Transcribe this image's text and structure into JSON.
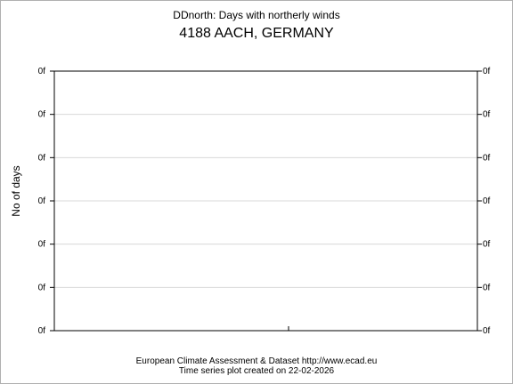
{
  "chart_data": {
    "type": "line",
    "title": "DDnorth: Days with northerly winds",
    "subtitle": "4188 AACH, GERMANY",
    "ylabel": "No of days",
    "xlabel": "",
    "y_tick_labels": [
      "0f",
      "0f",
      "0f",
      "0f",
      "0f",
      "0f",
      "0f"
    ],
    "series": [],
    "grid": true,
    "legend": "none"
  },
  "footer": {
    "line1": "European Climate Assessment & Dataset  http://www.ecad.eu",
    "line2": "Time series plot created on 22-02-2026"
  }
}
